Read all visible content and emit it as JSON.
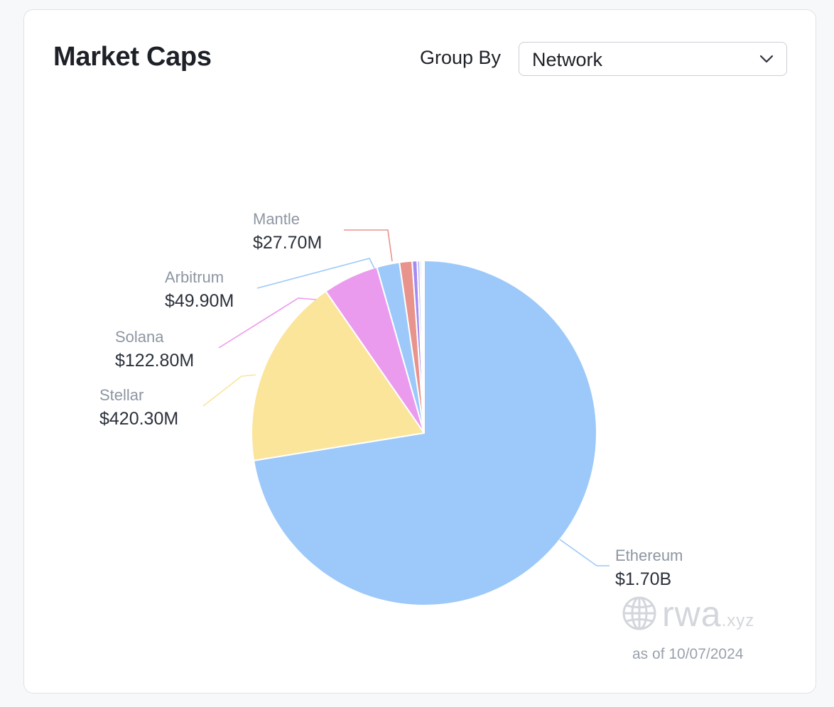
{
  "header": {
    "title": "Market Caps",
    "group_by_label": "Group By",
    "group_by_value": "Network"
  },
  "chart_data": {
    "type": "pie",
    "title": "Market Caps",
    "unit": "USD",
    "slices": [
      {
        "name": "Ethereum",
        "value": 1700000000,
        "label": "$1.70B",
        "color": "#9cc9f9",
        "labeled": true
      },
      {
        "name": "Stellar",
        "value": 420300000,
        "label": "$420.30M",
        "color": "#fae59b",
        "labeled": true
      },
      {
        "name": "Solana",
        "value": 122800000,
        "label": "$122.80M",
        "color": "#eb9bee",
        "labeled": true
      },
      {
        "name": "Arbitrum",
        "value": 49900000,
        "label": "$49.90M",
        "color": "#9cc9f9",
        "labeled": true
      },
      {
        "name": "Mantle",
        "value": 27700000,
        "label": "$27.70M",
        "color": "#e8938c",
        "labeled": true
      },
      {
        "name": "",
        "value": 11000000,
        "label": "",
        "color": "#a58bf0",
        "labeled": false
      },
      {
        "name": "",
        "value": 6000000,
        "label": "",
        "color": "#b5b9f5",
        "labeled": false
      },
      {
        "name": "",
        "value": 4000000,
        "label": "",
        "color": "#c7cbf2",
        "labeled": false
      },
      {
        "name": "",
        "value": 3000000,
        "label": "",
        "color": "#d6d9f0",
        "labeled": false
      },
      {
        "name": "",
        "value": 2000000,
        "label": "",
        "color": "#f0e6c8",
        "labeled": false
      }
    ],
    "start_angle": "12 o'clock",
    "direction": "clockwise"
  },
  "branding": {
    "logo": "globe-icon",
    "name": "rwa",
    "tld": ".xyz",
    "as_of": "as of 10/07/2024"
  }
}
